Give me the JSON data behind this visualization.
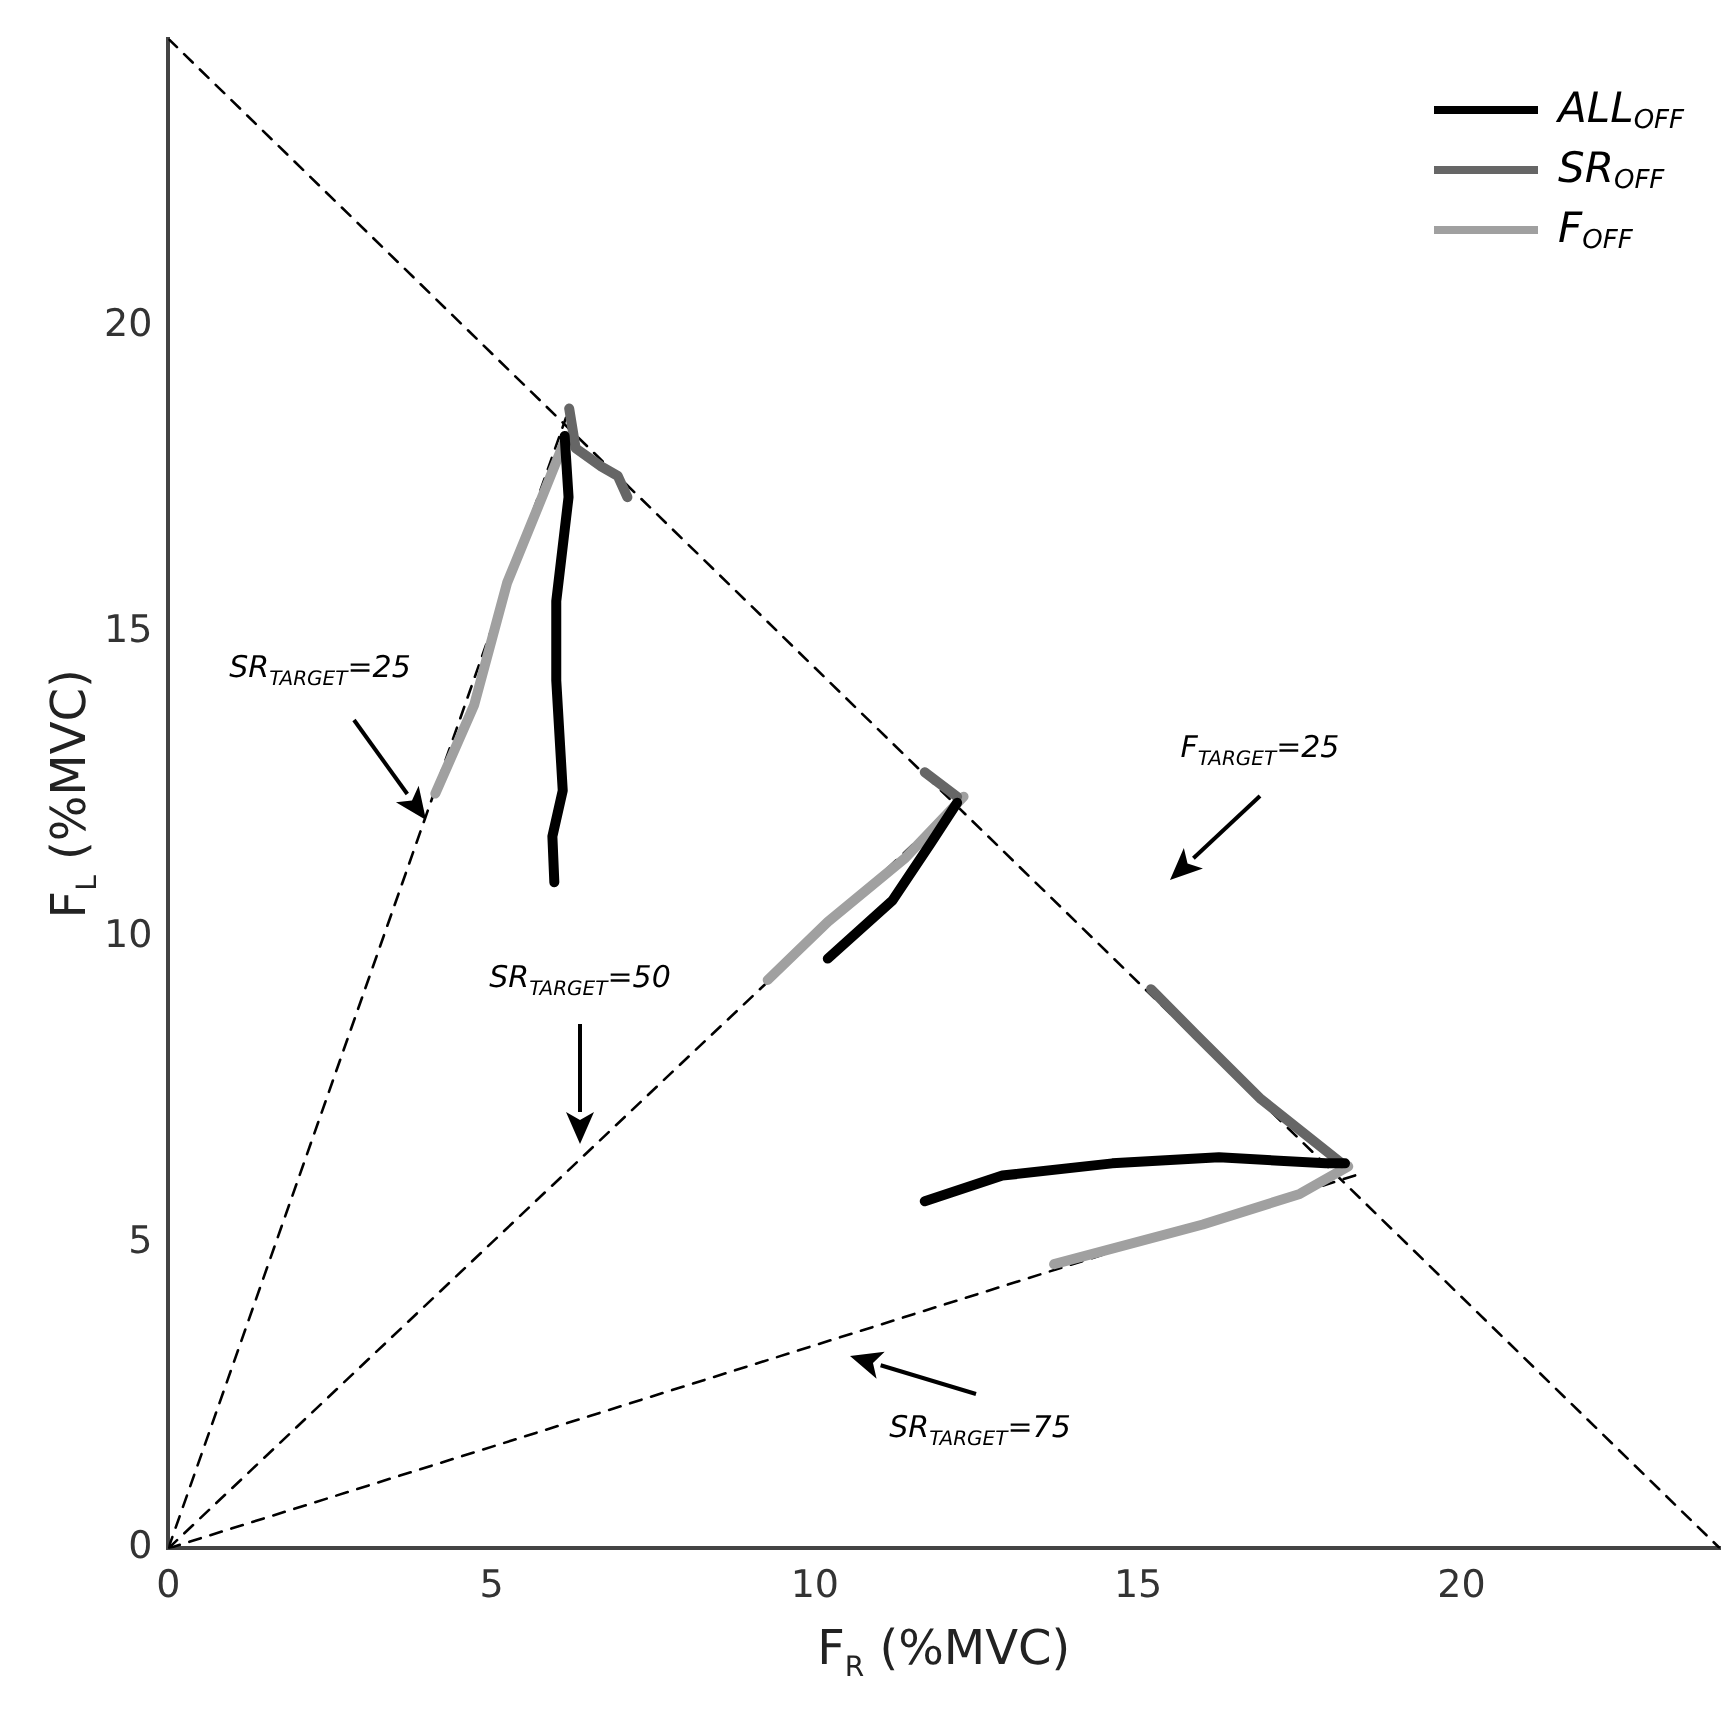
{
  "chart_data": {
    "type": "line",
    "xlabel": "F$_{R}$ (%MVC)",
    "ylabel": "F$_{L}$ (%MVC)",
    "xlim": [
      0,
      24
    ],
    "ylim": [
      0,
      24.7
    ],
    "xticks": [
      0,
      5,
      10,
      15,
      20
    ],
    "yticks": [
      0,
      5,
      10,
      15,
      20
    ],
    "grid": false,
    "legend": "top right",
    "marker": "none",
    "line_style": "solid",
    "series": [
      {
        "name": "ALL$_{OFF}$",
        "color": "#000000",
        "x": [
          5.97,
          5.94,
          6.1,
          6.0,
          6.0,
          6.19,
          6.13,
          null,
          10.2,
          11.2,
          11.8,
          12.2,
          null,
          11.7,
          12.9,
          14.6,
          16.25,
          17.9,
          18.2
        ],
        "values": [
          10.9,
          11.65,
          12.4,
          14.2,
          15.5,
          17.2,
          18.2,
          null,
          9.65,
          10.6,
          11.55,
          12.2,
          null,
          5.68,
          6.1,
          6.3,
          6.4,
          6.3,
          6.3
        ]
      },
      {
        "name": "SR$_{OFF}$",
        "color": "#666666",
        "x": [
          6.2,
          6.3,
          6.7,
          6.95,
          7.1,
          null,
          11.7,
          12.2,
          null,
          15.2,
          15.9,
          16.9,
          18.15
        ],
        "values": [
          18.65,
          18.0,
          17.7,
          17.55,
          17.2,
          null,
          12.7,
          12.3,
          null,
          9.15,
          8.4,
          7.35,
          6.3
        ]
      },
      {
        "name": "F$_{OFF}$",
        "color": "#a0a0a0",
        "x": [
          4.13,
          4.73,
          5.24,
          5.78,
          6.16,
          null,
          9.27,
          10.2,
          11.4,
          12.3,
          null,
          13.7,
          16.0,
          17.5,
          18.25
        ],
        "values": [
          12.35,
          13.8,
          15.8,
          17.2,
          18.2,
          null,
          9.3,
          10.25,
          11.3,
          12.3,
          null,
          4.65,
          5.3,
          5.8,
          6.25
        ]
      },
      {
        "type": "line",
        "color": "#000000",
        "line_style": "dashed",
        "x": [
          0,
          24
        ],
        "values": [
          24.7,
          0
        ]
      },
      {
        "type": "line",
        "color": "#000000",
        "line_style": "dashed",
        "x": [
          0,
          6.15
        ],
        "values": [
          0,
          18.5
        ]
      },
      {
        "type": "line",
        "color": "#000000",
        "line_style": "dashed",
        "x": [
          0,
          12.3
        ],
        "values": [
          0,
          12.3
        ]
      },
      {
        "type": "line",
        "color": "#000000",
        "line_style": "dashed",
        "x": [
          0,
          18.5
        ],
        "values": [
          0,
          6.15
        ]
      }
    ],
    "annotations": [
      "SR$_{TARGET}$=25",
      "SR$_{TARGET}$=50",
      "F$_{TARGET}$=25",
      "SR$_{TARGET}$=75"
    ]
  }
}
